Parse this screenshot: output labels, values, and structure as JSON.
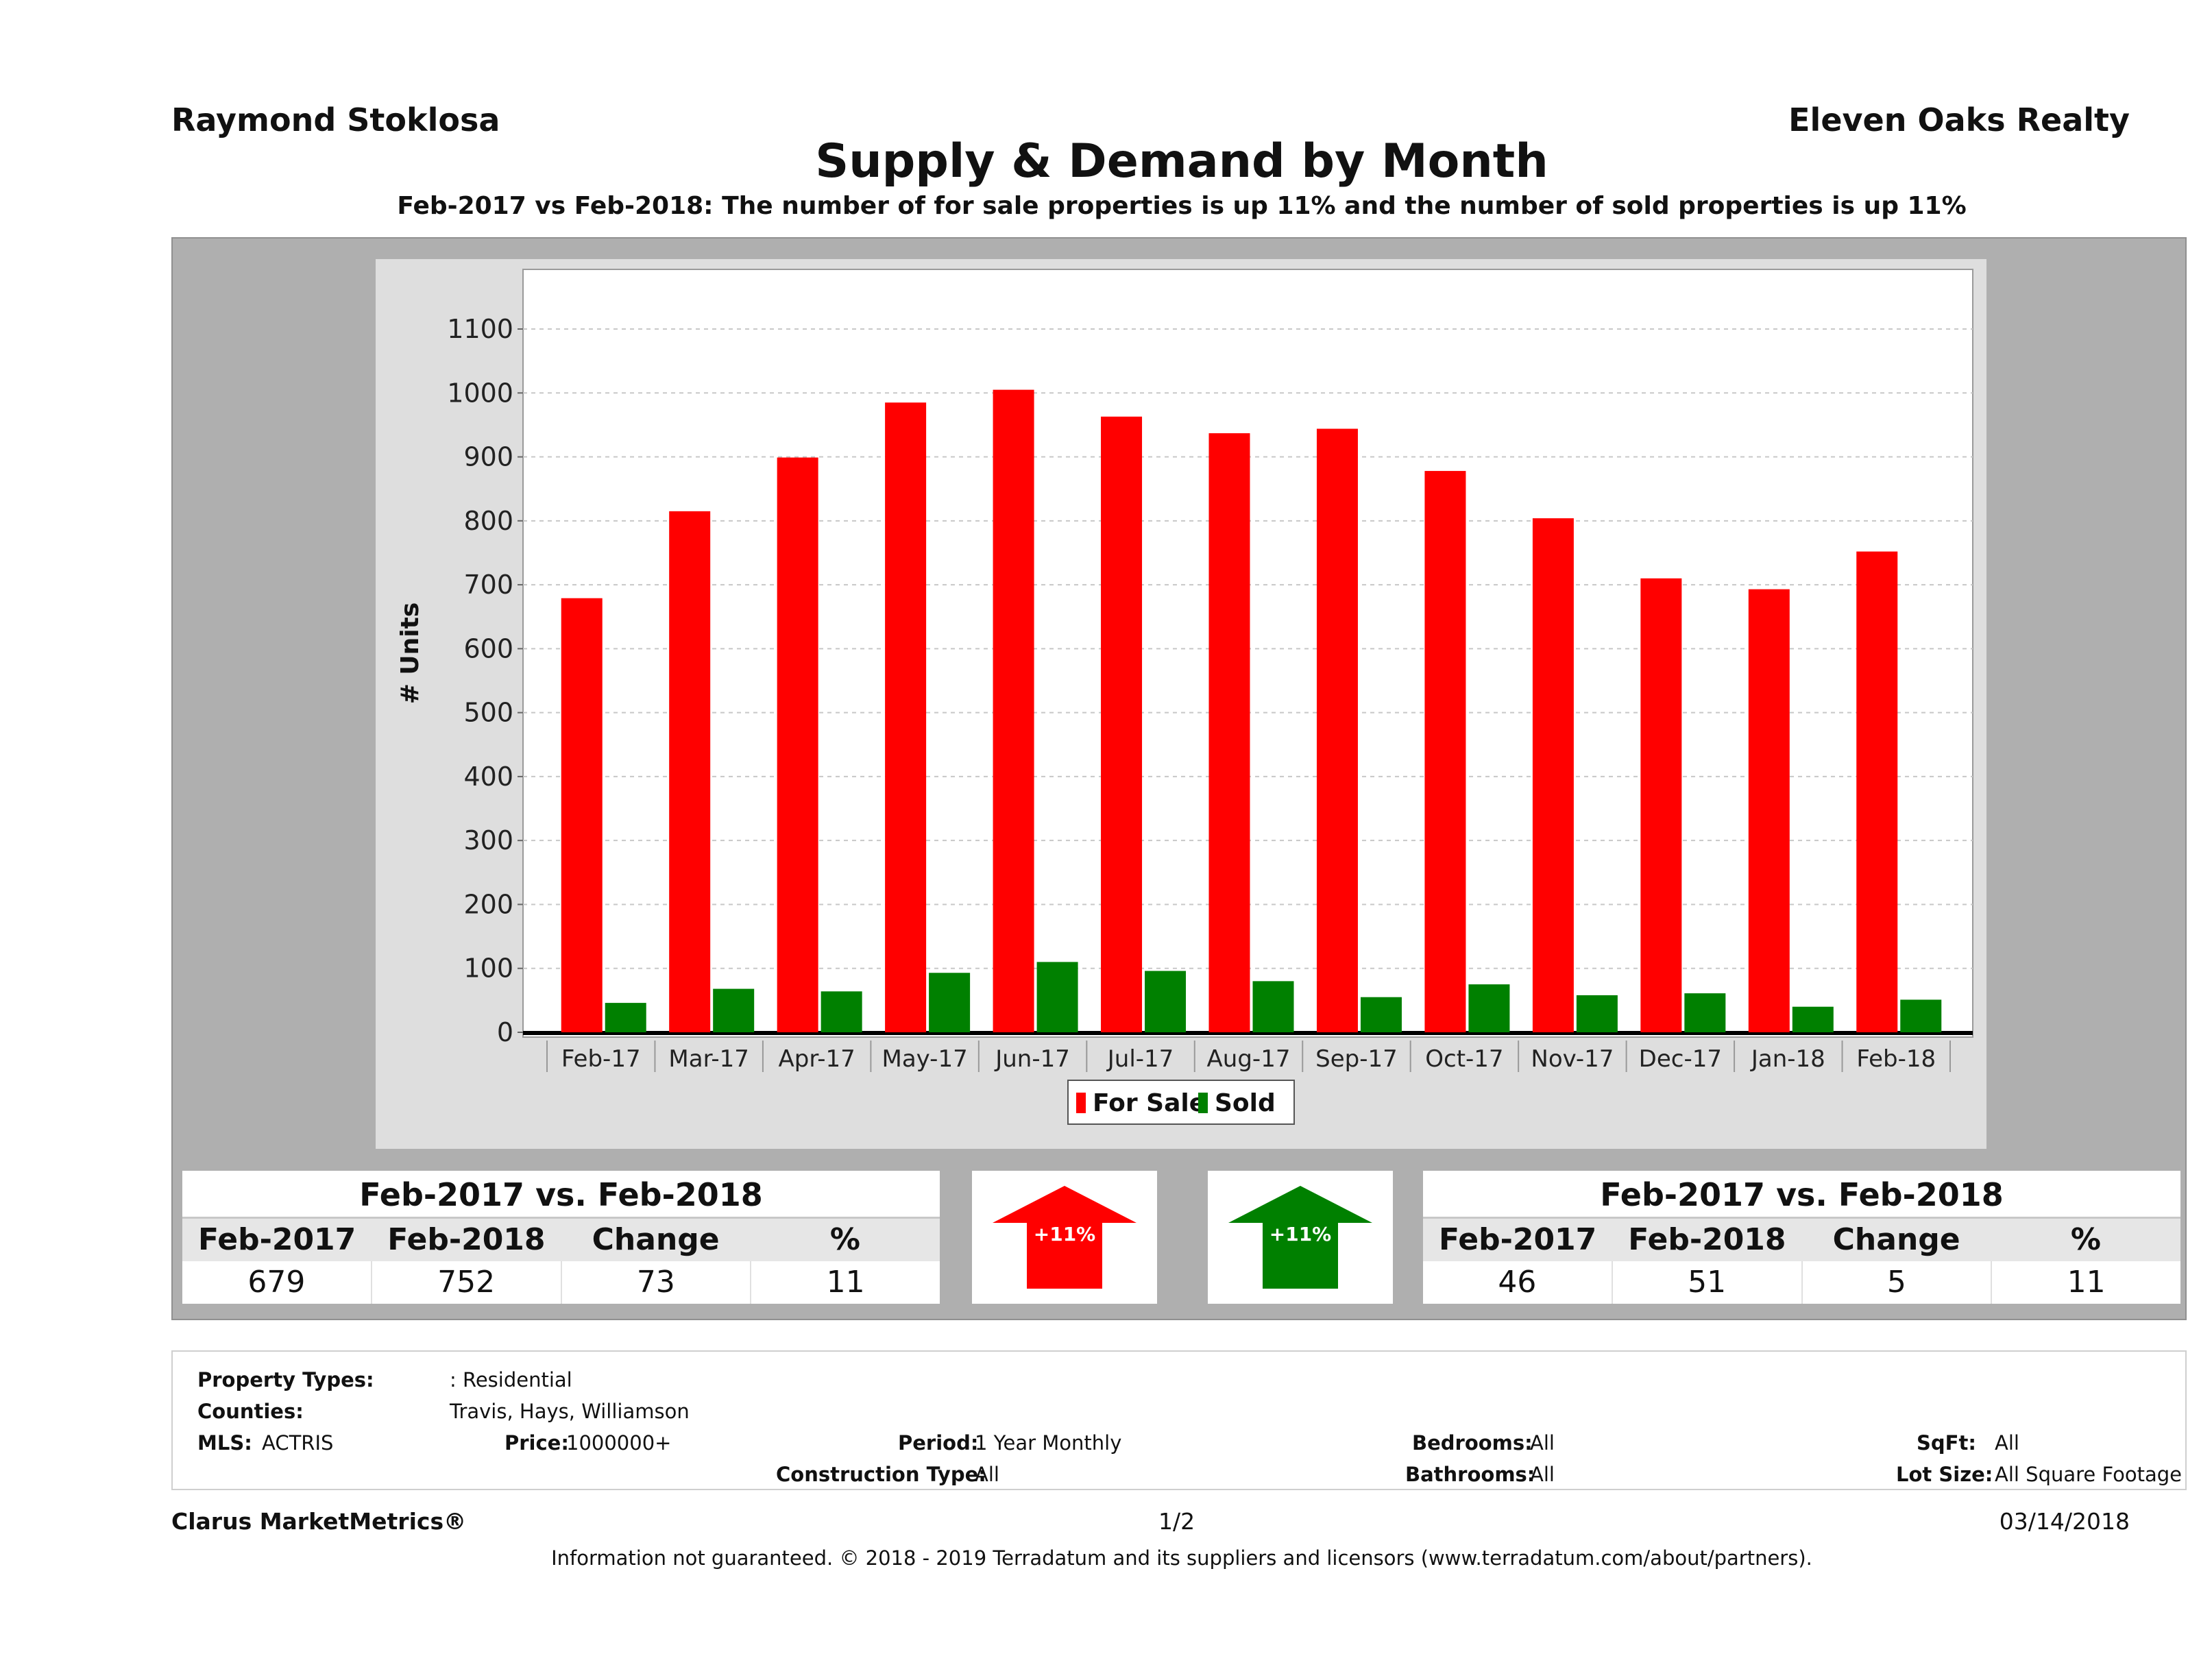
{
  "header": {
    "agent": "Raymond Stoklosa",
    "broker": "Eleven Oaks Realty",
    "title": "Supply & Demand by Month",
    "subtitle": "Feb-2017 vs Feb-2018: The number of for sale properties is up 11% and the number of sold properties is up 11%"
  },
  "chart_data": {
    "type": "bar",
    "categories": [
      "Feb-17",
      "Mar-17",
      "Apr-17",
      "May-17",
      "Jun-17",
      "Jul-17",
      "Aug-17",
      "Sep-17",
      "Oct-17",
      "Nov-17",
      "Dec-17",
      "Jan-18",
      "Feb-18"
    ],
    "series": [
      {
        "name": "For Sale",
        "color": "#ff0000",
        "values": [
          679,
          815,
          899,
          985,
          1005,
          963,
          937,
          944,
          878,
          804,
          710,
          693,
          752
        ]
      },
      {
        "name": "Sold",
        "color": "#008000",
        "values": [
          46,
          68,
          64,
          93,
          110,
          96,
          80,
          55,
          75,
          58,
          61,
          40,
          51
        ]
      }
    ],
    "ylabel": "# Units",
    "xlabel": "",
    "ylim": [
      0,
      1100
    ],
    "yticks": [
      0,
      100,
      200,
      300,
      400,
      500,
      600,
      700,
      800,
      900,
      1000,
      1100
    ],
    "grid": true,
    "legend": "bottom-center"
  },
  "for_sale_table": {
    "title": "Feb-2017 vs. Feb-2018",
    "columns": [
      "Feb-2017",
      "Feb-2018",
      "Change",
      "%"
    ],
    "values": [
      "679",
      "752",
      "73",
      "11"
    ]
  },
  "sold_table": {
    "title": "Feb-2017 vs. Feb-2018",
    "columns": [
      "Feb-2017",
      "Feb-2018",
      "Change",
      "%"
    ],
    "values": [
      "46",
      "51",
      "5",
      "11"
    ]
  },
  "arrows": {
    "for_sale": {
      "label": "+11%",
      "direction": "up",
      "color": "#ff0000"
    },
    "sold": {
      "label": "+11%",
      "direction": "up",
      "color": "#008000"
    }
  },
  "criteria": {
    "property_types_label": "Property Types:",
    "property_types_value": ": Residential",
    "counties_label": "Counties:",
    "counties_value": "Travis, Hays, Williamson",
    "mls_label": "MLS:",
    "mls_value": "ACTRIS",
    "price_label": "Price:",
    "price_value": "1000000+",
    "period_label": "Period:",
    "period_value": "1 Year Monthly",
    "construction_label": "Construction Type:",
    "construction_value": "All",
    "bedrooms_label": "Bedrooms:",
    "bedrooms_value": "All",
    "bathrooms_label": "Bathrooms:",
    "bathrooms_value": "All",
    "sqft_label": "SqFt:",
    "sqft_value": "All",
    "lotsize_label": "Lot Size:",
    "lotsize_value": "All Square Footage"
  },
  "footer": {
    "brand": "Clarus MarketMetrics®",
    "page": "1/2",
    "date": "03/14/2018",
    "disclaimer": "Information not guaranteed. © 2018 - 2019 Terradatum and its suppliers and licensors (www.terradatum.com/about/partners)."
  }
}
